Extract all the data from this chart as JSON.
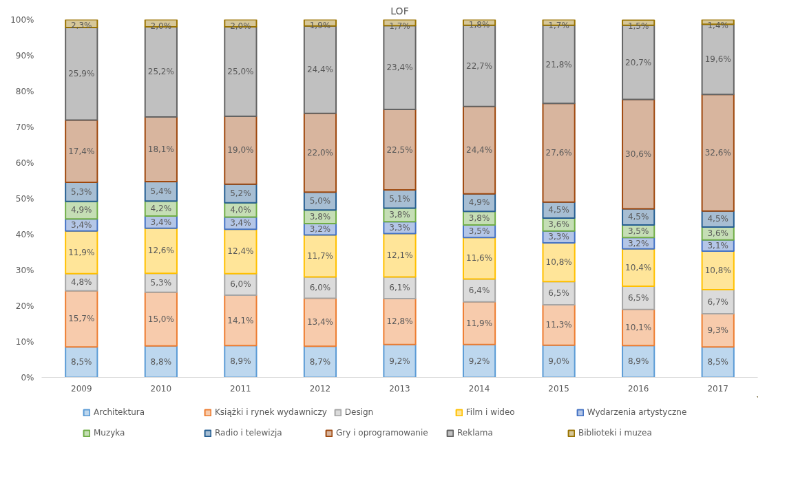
{
  "chart_data": {
    "type": "bar",
    "title": "LOF",
    "stacked": true,
    "categories": [
      "2009",
      "2010",
      "2011",
      "2012",
      "2013",
      "2014",
      "2015",
      "2016",
      "2017"
    ],
    "ylim": [
      0,
      100
    ],
    "yticks": [
      {
        "value": 0,
        "label": "0%"
      },
      {
        "value": 10,
        "label": "10%"
      },
      {
        "value": 20,
        "label": "20%"
      },
      {
        "value": 30,
        "label": "30%"
      },
      {
        "value": 40,
        "label": "40%"
      },
      {
        "value": 50,
        "label": "50%"
      },
      {
        "value": 60,
        "label": "60%"
      },
      {
        "value": 70,
        "label": "70%"
      },
      {
        "value": 80,
        "label": "80%"
      },
      {
        "value": 90,
        "label": "90%"
      },
      {
        "value": 100,
        "label": "100%"
      }
    ],
    "grid": false,
    "legend": "bottom",
    "series": [
      {
        "name": "Architektura",
        "color": "#5b9bd5",
        "values": [
          8.5,
          8.8,
          8.9,
          8.7,
          9.2,
          9.2,
          9.0,
          8.9,
          8.5
        ],
        "value_labels": [
          "8,5%",
          "8,8%",
          "8,9%",
          "8,7%",
          "9,2%",
          "9,2%",
          "9,0%",
          "8,9%",
          "8,5%"
        ]
      },
      {
        "name": "Książki i rynek wydawniczy",
        "color": "#ed7d31",
        "values": [
          15.7,
          15.0,
          14.1,
          13.4,
          12.8,
          11.9,
          11.3,
          10.1,
          9.3
        ],
        "value_labels": [
          "15,7%",
          "15,0%",
          "14,1%",
          "13,4%",
          "12,8%",
          "11,9%",
          "11,3%",
          "10,1%",
          "9,3%"
        ]
      },
      {
        "name": "Design",
        "color": "#a5a5a5",
        "values": [
          4.8,
          5.3,
          6.0,
          6.0,
          6.1,
          6.4,
          6.5,
          6.5,
          6.7
        ],
        "value_labels": [
          "4,8%",
          "5,3%",
          "6,0%",
          "6,0%",
          "6,1%",
          "6,4%",
          "6,5%",
          "6,5%",
          "6,7%"
        ]
      },
      {
        "name": "Film i wideo",
        "color": "#ffc000",
        "values": [
          11.9,
          12.6,
          12.4,
          11.7,
          12.1,
          11.6,
          10.8,
          10.4,
          10.8
        ],
        "value_labels": [
          "11,9%",
          "12,6%",
          "12,4%",
          "11,7%",
          "12,1%",
          "11,6%",
          "10,8%",
          "10,4%",
          "10,8%"
        ]
      },
      {
        "name": "Wydarzenia artystyczne",
        "color": "#4472c4",
        "values": [
          3.4,
          3.4,
          3.4,
          3.2,
          3.3,
          3.5,
          3.3,
          3.2,
          3.1
        ],
        "value_labels": [
          "3,4%",
          "3,4%",
          "3,4%",
          "3,2%",
          "3,3%",
          "3,5%",
          "3,3%",
          "3,2%",
          "3,1%"
        ]
      },
      {
        "name": "Muzyka",
        "color": "#70ad47",
        "values": [
          4.9,
          4.2,
          4.0,
          3.8,
          3.8,
          3.8,
          3.6,
          3.5,
          3.6
        ],
        "value_labels": [
          "4,9%",
          "4,2%",
          "4,0%",
          "3,8%",
          "3,8%",
          "3,8%",
          "3,6%",
          "3,5%",
          "3,6%"
        ]
      },
      {
        "name": "Radio i telewizja",
        "color": "#255e91",
        "values": [
          5.3,
          5.4,
          5.2,
          5.0,
          5.1,
          4.9,
          4.5,
          4.5,
          4.5
        ],
        "value_labels": [
          "5,3%",
          "5,4%",
          "5,2%",
          "5,0%",
          "5,1%",
          "4,9%",
          "4,5%",
          "4,5%",
          "4,5%"
        ]
      },
      {
        "name": "Gry i oprogramowanie",
        "color": "#9e480e",
        "values": [
          17.4,
          18.1,
          19.0,
          22.0,
          22.5,
          24.4,
          27.6,
          30.6,
          32.6
        ],
        "value_labels": [
          "17,4%",
          "18,1%",
          "19,0%",
          "22,0%",
          "22,5%",
          "24,4%",
          "27,6%",
          "30,6%",
          "32,6%"
        ]
      },
      {
        "name": "Reklama",
        "color": "#636363",
        "values": [
          25.9,
          25.2,
          25.0,
          24.4,
          23.4,
          22.7,
          21.8,
          20.7,
          19.6
        ],
        "value_labels": [
          "25,9%",
          "25,2%",
          "25,0%",
          "24,4%",
          "23,4%",
          "22,7%",
          "21,8%",
          "20,7%",
          "19,6%"
        ]
      },
      {
        "name": "Biblioteki i muzea",
        "color": "#997300",
        "values": [
          2.3,
          2.0,
          2.0,
          1.9,
          1.7,
          1.8,
          1.7,
          1.5,
          1.4
        ],
        "value_labels": [
          "2,3%",
          "2,0%",
          "2,0%",
          "1,9%",
          "1,7%",
          "1,8%",
          "1,7%",
          "1,5%",
          "1,4%"
        ]
      }
    ]
  }
}
